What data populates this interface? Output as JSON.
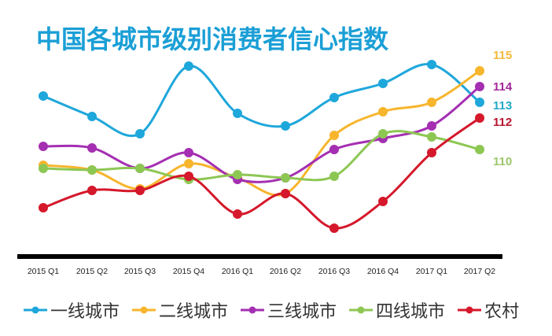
{
  "chart_data": {
    "type": "line",
    "title": "中国各城市级别消费者信心指数",
    "xlabel": "",
    "ylabel": "",
    "categories": [
      "2015 Q1",
      "2015 Q2",
      "2015 Q3",
      "2015 Q4",
      "2016 Q1",
      "2016 Q2",
      "2016 Q3",
      "2016 Q4",
      "2017 Q1",
      "2017 Q2"
    ],
    "grid": false,
    "legend": "bottom",
    "series": [
      {
        "name": "一线城市",
        "color": "#1ea7db",
        "end_label": "113",
        "values": [
          113.4,
          112.1,
          111.0,
          115.3,
          112.3,
          111.5,
          113.3,
          114.2,
          115.4,
          113
        ]
      },
      {
        "name": "二线城市",
        "color": "#f7b52c",
        "end_label": "115",
        "values": [
          109.0,
          108.7,
          107.5,
          109.1,
          108.2,
          107.2,
          110.9,
          112.4,
          113.0,
          115
        ]
      },
      {
        "name": "三线城市",
        "color": "#a42fb2",
        "end_label": "114",
        "values": [
          110.2,
          110.1,
          108.8,
          109.8,
          108.1,
          108.2,
          110.0,
          110.7,
          111.5,
          114
        ]
      },
      {
        "name": "四线城市",
        "color": "#8dc753",
        "end_label": "110",
        "values": [
          108.8,
          108.7,
          108.8,
          108.1,
          108.4,
          108.2,
          108.3,
          111.0,
          110.8,
          110
        ]
      },
      {
        "name": "农村",
        "color": "#d5182b",
        "end_label": "112",
        "values": [
          106.3,
          107.4,
          107.4,
          108.3,
          105.9,
          107.2,
          105.0,
          106.7,
          109.8,
          112
        ]
      }
    ],
    "end_label_colors": {
      "一线城市": "#23a9c9",
      "二线城市": "#f2b93a",
      "三线城市": "#a3289a",
      "四线城市": "#9cc66a",
      "农村": "#b8152e"
    }
  }
}
